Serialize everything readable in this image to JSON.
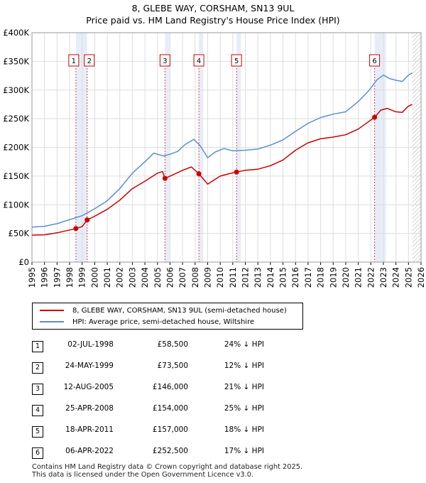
{
  "title_line1": "8, GLEBE WAY, CORSHAM, SN13 9UL",
  "title_line2": "Price paid vs. HM Land Registry's House Price Index (HPI)",
  "chart_data": {
    "type": "line",
    "title": "8, GLEBE WAY, CORSHAM, SN13 9UL",
    "subtitle": "Price paid vs. HM Land Registry's House Price Index (HPI)",
    "xlabel": "",
    "ylabel": "",
    "xlim": [
      1995,
      2026
    ],
    "ylim": [
      0,
      400000
    ],
    "x_ticks": [
      "1995",
      "1996",
      "1997",
      "1998",
      "1999",
      "2000",
      "2001",
      "2002",
      "2003",
      "2004",
      "2005",
      "2006",
      "2007",
      "2008",
      "2009",
      "2010",
      "2011",
      "2012",
      "2013",
      "2014",
      "2015",
      "2016",
      "2017",
      "2018",
      "2019",
      "2020",
      "2021",
      "2022",
      "2023",
      "2024",
      "2025",
      "2026"
    ],
    "y_ticks": [
      {
        "value": 0,
        "label": "£0"
      },
      {
        "value": 50000,
        "label": "£50K"
      },
      {
        "value": 100000,
        "label": "£100K"
      },
      {
        "value": 150000,
        "label": "£150K"
      },
      {
        "value": 200000,
        "label": "£200K"
      },
      {
        "value": 250000,
        "label": "£250K"
      },
      {
        "value": 300000,
        "label": "£300K"
      },
      {
        "value": 350000,
        "label": "£350K"
      },
      {
        "value": 400000,
        "label": "£400K"
      }
    ],
    "grid": true,
    "series": [
      {
        "name": "8, GLEBE WAY, CORSHAM, SN13 9UL (semi-detached house)",
        "color": "#cc0000",
        "points": [
          [
            1995.0,
            47000
          ],
          [
            1996.0,
            47500
          ],
          [
            1997.0,
            51000
          ],
          [
            1998.0,
            56000
          ],
          [
            1998.5,
            58500
          ],
          [
            1999.0,
            62000
          ],
          [
            1999.4,
            73500
          ],
          [
            2000.0,
            80000
          ],
          [
            2001.0,
            92000
          ],
          [
            2002.0,
            108000
          ],
          [
            2003.0,
            128000
          ],
          [
            2004.0,
            141000
          ],
          [
            2005.0,
            155000
          ],
          [
            2005.4,
            158000
          ],
          [
            2005.6,
            146000
          ],
          [
            2006.0,
            150000
          ],
          [
            2007.0,
            160000
          ],
          [
            2007.7,
            166000
          ],
          [
            2008.3,
            154000
          ],
          [
            2009.0,
            136000
          ],
          [
            2009.5,
            143000
          ],
          [
            2010.0,
            150000
          ],
          [
            2010.7,
            154000
          ],
          [
            2011.3,
            157000
          ],
          [
            2012.0,
            160000
          ],
          [
            2013.0,
            162000
          ],
          [
            2014.0,
            168000
          ],
          [
            2015.0,
            178000
          ],
          [
            2016.0,
            195000
          ],
          [
            2017.0,
            208000
          ],
          [
            2018.0,
            215000
          ],
          [
            2019.0,
            218000
          ],
          [
            2020.0,
            222000
          ],
          [
            2021.0,
            232000
          ],
          [
            2021.7,
            243000
          ],
          [
            2022.3,
            252500
          ],
          [
            2022.8,
            265000
          ],
          [
            2023.3,
            268000
          ],
          [
            2024.0,
            262000
          ],
          [
            2024.5,
            261000
          ],
          [
            2025.0,
            272000
          ],
          [
            2025.3,
            275000
          ]
        ]
      },
      {
        "name": "HPI: Average price, semi-detached house, Wiltshire",
        "color": "#5b8fd0",
        "points": [
          [
            1995.0,
            61000
          ],
          [
            1996.0,
            62500
          ],
          [
            1997.0,
            67000
          ],
          [
            1998.0,
            74000
          ],
          [
            1999.0,
            81000
          ],
          [
            2000.0,
            93000
          ],
          [
            2001.0,
            107000
          ],
          [
            2002.0,
            128000
          ],
          [
            2003.0,
            155000
          ],
          [
            2004.0,
            175000
          ],
          [
            2004.7,
            190000
          ],
          [
            2005.5,
            185000
          ],
          [
            2006.0,
            188000
          ],
          [
            2006.6,
            193000
          ],
          [
            2007.2,
            205000
          ],
          [
            2007.9,
            214000
          ],
          [
            2008.4,
            203000
          ],
          [
            2009.0,
            182000
          ],
          [
            2009.6,
            192000
          ],
          [
            2010.3,
            198000
          ],
          [
            2011.0,
            194000
          ],
          [
            2012.0,
            195000
          ],
          [
            2013.0,
            197000
          ],
          [
            2014.0,
            204000
          ],
          [
            2015.0,
            213000
          ],
          [
            2016.0,
            228000
          ],
          [
            2017.0,
            242000
          ],
          [
            2018.0,
            252000
          ],
          [
            2019.0,
            258000
          ],
          [
            2020.0,
            262000
          ],
          [
            2021.0,
            280000
          ],
          [
            2021.8,
            298000
          ],
          [
            2022.5,
            318000
          ],
          [
            2023.0,
            326000
          ],
          [
            2023.5,
            320000
          ],
          [
            2024.0,
            317000
          ],
          [
            2024.5,
            315000
          ],
          [
            2025.0,
            326000
          ],
          [
            2025.3,
            330000
          ]
        ]
      }
    ],
    "sales": [
      {
        "n": "1",
        "x": 1998.5,
        "price": 58500
      },
      {
        "n": "2",
        "x": 1999.4,
        "price": 73500
      },
      {
        "n": "3",
        "x": 2005.6,
        "price": 146000
      },
      {
        "n": "4",
        "x": 2008.3,
        "price": 154000
      },
      {
        "n": "5",
        "x": 2011.3,
        "price": 157000
      },
      {
        "n": "6",
        "x": 2022.3,
        "price": 252500
      }
    ],
    "forecast_from": 2025.3
  },
  "legend": {
    "property_label": "8, GLEBE WAY, CORSHAM, SN13 9UL (semi-detached house)",
    "hpi_label": "HPI: Average price, semi-detached house, Wiltshire"
  },
  "colors": {
    "property": "#cc0000",
    "hpi": "#5b8fd0",
    "band": "#dde6f5"
  },
  "sales_table": [
    {
      "n": "1",
      "date": "02-JUL-1998",
      "price": "£58,500",
      "hpi": "24% ↓ HPI"
    },
    {
      "n": "2",
      "date": "24-MAY-1999",
      "price": "£73,500",
      "hpi": "12% ↓ HPI"
    },
    {
      "n": "3",
      "date": "12-AUG-2005",
      "price": "£146,000",
      "hpi": "21% ↓ HPI"
    },
    {
      "n": "4",
      "date": "25-APR-2008",
      "price": "£154,000",
      "hpi": "25% ↓ HPI"
    },
    {
      "n": "5",
      "date": "18-APR-2011",
      "price": "£157,000",
      "hpi": "18% ↓ HPI"
    },
    {
      "n": "6",
      "date": "06-APR-2022",
      "price": "£252,500",
      "hpi": "17% ↓ HPI"
    }
  ],
  "footer": {
    "line1": "Contains HM Land Registry data © Crown copyright and database right 2025.",
    "line2": "This data is licensed under the Open Government Licence v3.0."
  }
}
